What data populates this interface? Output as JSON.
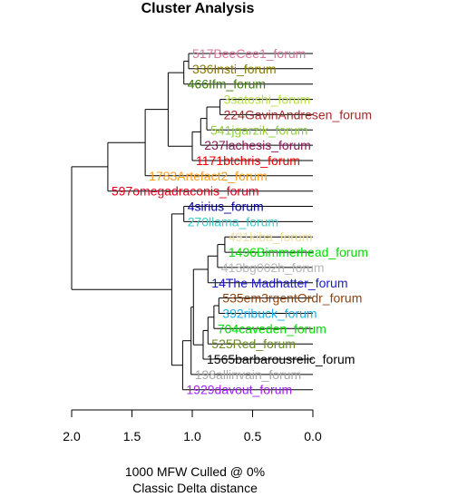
{
  "chart_data": {
    "type": "dendrogram",
    "title": "Cluster Analysis",
    "subtitle_lines": [
      "1000 MFW  Culled @ 0%",
      "Classic Delta distance"
    ],
    "x_axis": {
      "ticks": [
        2.0,
        1.5,
        1.0,
        0.5,
        0.0
      ],
      "tick_labels": [
        "2.0",
        "1.5",
        "1.0",
        "0.5",
        "0.0"
      ],
      "xlim": [
        2.0,
        0.0
      ]
    },
    "leaves": [
      {
        "id": "l1",
        "label": "517BeeCee1_forum",
        "color": "#d9759c",
        "height": 0.0
      },
      {
        "id": "l2",
        "label": "336Insti_forum",
        "color": "#8b7a00",
        "height": 0.0
      },
      {
        "id": "l3",
        "label": "466Ifm_forum",
        "color": "#3a7b00",
        "height": 0.0
      },
      {
        "id": "l4",
        "label": "3satoshi_forum",
        "color": "#b8e04c",
        "height": 0.0
      },
      {
        "id": "l5",
        "label": "224GavinAndresen_forum",
        "color": "#a52a2a",
        "height": 0.0
      },
      {
        "id": "l6",
        "label": "541jgarzik_forum",
        "color": "#8fce3c",
        "height": 0.0
      },
      {
        "id": "l7",
        "label": "237lachesis_forum",
        "color": "#8b1a5a",
        "height": 0.0
      },
      {
        "id": "l8",
        "label": "1171btchris_forum",
        "color": "#ee0000",
        "height": 0.0
      },
      {
        "id": "l9",
        "label": "1783Artefact2_forum",
        "color": "#ff9f1a",
        "height": 0.0
      },
      {
        "id": "l10",
        "label": "597omegadraconis_forum",
        "color": "#e0001a",
        "height": 0.0
      },
      {
        "id": "l11",
        "label": "4sirius_forum",
        "color": "#0000a0",
        "height": 0.0
      },
      {
        "id": "l12",
        "label": "270llama_forum",
        "color": "#3fc8c8",
        "height": 0.0
      },
      {
        "id": "l13",
        "label": "491kiba_forum",
        "color": "#f0e0a0",
        "height": 0.0
      },
      {
        "id": "l14",
        "label": "1496Bimmerhead_forum",
        "color": "#00dd00",
        "height": 0.0
      },
      {
        "id": "l15",
        "label": "413bg002h_forum",
        "color": "#b8b8b8",
        "height": 0.0
      },
      {
        "id": "l16",
        "label": "14The Madhatter_forum",
        "color": "#1a1acd",
        "height": 0.0
      },
      {
        "id": "l17",
        "label": "535em3rgentOrdr_forum",
        "color": "#8b4513",
        "height": 0.0
      },
      {
        "id": "l18",
        "label": "392ribuck_forum",
        "color": "#1ab0ee",
        "height": 0.0
      },
      {
        "id": "l19",
        "label": "704caveden_forum",
        "color": "#00dd00",
        "height": 0.0
      },
      {
        "id": "l20",
        "label": "525Red_forum",
        "color": "#6b8e23",
        "height": 0.0
      },
      {
        "id": "l21",
        "label": "1565barbarousrelic_forum",
        "color": "#000000",
        "height": 0.0
      },
      {
        "id": "l22",
        "label": "198allinvain_forum",
        "color": "#a9a9a9",
        "height": 0.0
      },
      {
        "id": "l23",
        "label": "1929davout_forum",
        "color": "#a020f0",
        "height": 0.0
      }
    ],
    "merges": [
      {
        "id": "n1",
        "children": [
          "l1",
          "l2"
        ],
        "height": 1.03
      },
      {
        "id": "n2",
        "children": [
          "n1",
          "l3"
        ],
        "height": 1.07
      },
      {
        "id": "n3",
        "children": [
          "l4",
          "l5"
        ],
        "height": 0.77
      },
      {
        "id": "n4",
        "children": [
          "n3",
          "l6"
        ],
        "height": 0.88
      },
      {
        "id": "n5",
        "children": [
          "n4",
          "l7"
        ],
        "height": 0.93
      },
      {
        "id": "n6",
        "children": [
          "n5",
          "l8"
        ],
        "height": 1.0
      },
      {
        "id": "n7",
        "children": [
          "n2",
          "n6"
        ],
        "height": 1.2
      },
      {
        "id": "n8",
        "children": [
          "n7",
          "l9"
        ],
        "height": 1.39
      },
      {
        "id": "n9",
        "children": [
          "n8",
          "l10"
        ],
        "height": 1.7
      },
      {
        "id": "n10",
        "children": [
          "l11",
          "l12"
        ],
        "height": 1.07
      },
      {
        "id": "n11",
        "children": [
          "l13",
          "l14"
        ],
        "height": 0.73
      },
      {
        "id": "n12",
        "children": [
          "n11",
          "l15"
        ],
        "height": 0.79
      },
      {
        "id": "n13",
        "children": [
          "n12",
          "l16"
        ],
        "height": 0.87
      },
      {
        "id": "n14",
        "children": [
          "l17",
          "l18"
        ],
        "height": 0.78
      },
      {
        "id": "n15",
        "children": [
          "n14",
          "l19"
        ],
        "height": 0.82
      },
      {
        "id": "n16",
        "children": [
          "n15",
          "l20"
        ],
        "height": 0.87
      },
      {
        "id": "n17",
        "children": [
          "n16",
          "l21"
        ],
        "height": 0.91
      },
      {
        "id": "n18",
        "children": [
          "n13",
          "n17"
        ],
        "height": 0.99
      },
      {
        "id": "n19",
        "children": [
          "n18",
          "l22"
        ],
        "height": 1.01
      },
      {
        "id": "n20",
        "children": [
          "n19",
          "l23"
        ],
        "height": 1.08
      },
      {
        "id": "n21",
        "children": [
          "n10",
          "n20"
        ],
        "height": 1.17
      },
      {
        "id": "n22",
        "children": [
          "n9",
          "n21"
        ],
        "height": 2.0
      }
    ]
  }
}
